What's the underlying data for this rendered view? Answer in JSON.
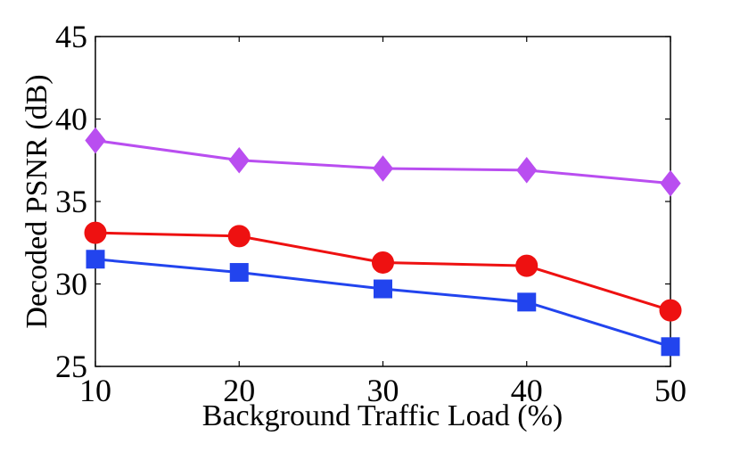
{
  "chart_data": {
    "type": "line",
    "title": "",
    "xlabel": "Background Traffic Load (%)",
    "ylabel": "Decoded PSNR (dB)",
    "x": [
      10,
      20,
      30,
      40,
      50
    ],
    "xlim": [
      10,
      50
    ],
    "ylim": [
      25,
      45
    ],
    "xticks": [
      "10",
      "20",
      "30",
      "40",
      "50"
    ],
    "yticks": [
      "25",
      "30",
      "35",
      "40",
      "45"
    ],
    "grid": false,
    "series": [
      {
        "name": "diamond-series",
        "marker": "diamond",
        "color": "#b94ef0",
        "values": [
          38.7,
          37.5,
          37.0,
          36.9,
          36.1
        ]
      },
      {
        "name": "circle-series",
        "marker": "circle",
        "color": "#ee1111",
        "values": [
          33.1,
          32.9,
          31.3,
          31.1,
          28.4
        ]
      },
      {
        "name": "square-series",
        "marker": "square",
        "color": "#2244ee",
        "values": [
          31.5,
          30.7,
          29.7,
          28.9,
          26.2
        ]
      }
    ]
  }
}
